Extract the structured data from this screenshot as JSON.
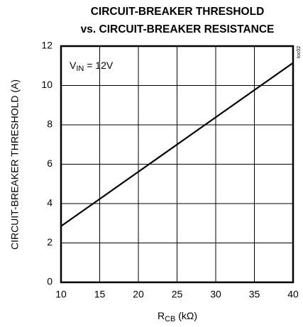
{
  "chart_data": {
    "type": "line",
    "title": [
      "CIRCUIT-BREAKER THRESHOLD",
      "vs. CIRCUIT-BREAKER RESISTANCE"
    ],
    "x_label": [
      "R",
      "CB",
      " (kΩ)"
    ],
    "y_label": "CIRCUIT-BREAKER THRESHOLD (A)",
    "annotation": [
      "V",
      "IN",
      " = 12V"
    ],
    "figure_id": "toc02",
    "x": [
      10,
      40
    ],
    "series": [
      {
        "name": null,
        "color": "#000000",
        "values": [
          2.85,
          11.15
        ]
      }
    ],
    "xlim": [
      10,
      40
    ],
    "xticks": [
      10,
      15,
      20,
      25,
      30,
      35,
      40
    ],
    "ylim": [
      0,
      12
    ],
    "yticks": [
      0,
      2,
      4,
      6,
      8,
      10,
      12
    ],
    "grid": true
  }
}
